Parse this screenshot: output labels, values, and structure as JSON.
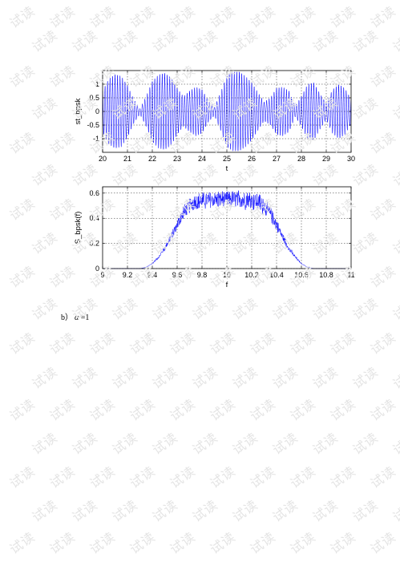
{
  "watermark_text": "试读",
  "caption": {
    "label": "b）",
    "alpha_symbol": "α",
    "equation": " =1"
  },
  "chart_data": [
    {
      "type": "line",
      "id": "time-domain",
      "title": "",
      "xlabel": "t",
      "ylabel": "st_bpsk",
      "xlim": [
        20,
        30
      ],
      "ylim": [
        -1.5,
        1.5
      ],
      "xticks": [
        20,
        21,
        22,
        23,
        24,
        25,
        26,
        27,
        28,
        29,
        30
      ],
      "yticks": [
        -1,
        -0.5,
        0,
        0.5,
        1
      ],
      "ytick_labels": [
        "-1",
        "-0.5",
        "0",
        "0.5",
        "1"
      ],
      "grid": true,
      "line_color": "#0000ff",
      "series": [
        {
          "carrier_frequency": 10,
          "envelope": {
            "t": [
              20.0,
              20.25,
              20.5,
              20.75,
              21.0,
              21.25,
              21.5,
              21.75,
              22.0,
              22.25,
              22.5,
              22.75,
              23.0,
              23.25,
              23.5,
              23.75,
              24.0,
              24.25,
              24.5,
              24.75,
              25.0,
              25.25,
              25.5,
              25.75,
              26.0,
              26.25,
              26.5,
              26.75,
              27.0,
              27.25,
              27.5,
              27.75,
              28.0,
              28.25,
              28.5,
              28.75,
              29.0,
              29.25,
              29.5,
              29.75,
              30.0
            ],
            "amplitude": [
              0.75,
              1.2,
              1.35,
              1.3,
              0.95,
              0.45,
              0.1,
              0.55,
              1.1,
              1.35,
              1.4,
              1.25,
              0.85,
              0.55,
              0.75,
              0.9,
              0.8,
              0.4,
              0.15,
              0.7,
              1.3,
              1.45,
              1.45,
              1.3,
              1.05,
              0.7,
              0.35,
              0.5,
              0.85,
              0.9,
              0.75,
              0.2,
              0.55,
              1.0,
              1.05,
              0.65,
              0.3,
              0.8,
              1.0,
              0.85,
              0.45
            ]
          }
        }
      ]
    },
    {
      "type": "line",
      "id": "spectrum",
      "title": "",
      "xlabel": "f",
      "ylabel": "S_bpsk(f)",
      "xlim": [
        9,
        11
      ],
      "ylim": [
        0,
        0.65
      ],
      "xticks": [
        9,
        9.2,
        9.4,
        9.6,
        9.8,
        10,
        10.2,
        10.4,
        10.6,
        10.8,
        11
      ],
      "xtick_labels": [
        "9",
        "9.2",
        "9.4",
        "9.6",
        "9.8",
        "10",
        "10.2",
        "10.4",
        "10.6",
        "10.8",
        "11"
      ],
      "yticks": [
        0,
        0.2,
        0.4,
        0.6
      ],
      "ytick_labels": [
        "0",
        "0.2",
        "0.4",
        "0.6"
      ],
      "grid": true,
      "line_color": "#0000ff",
      "series": [
        {
          "shape": {
            "f": [
              9.0,
              9.3,
              9.35,
              9.4,
              9.45,
              9.5,
              9.55,
              9.6,
              9.65,
              9.7,
              9.75,
              9.8,
              9.9,
              10.0,
              10.1,
              10.2,
              10.25,
              10.3,
              10.35,
              10.4,
              10.45,
              10.5,
              10.55,
              10.6,
              10.65,
              10.7,
              11.0
            ],
            "level": [
              0.0,
              0.0,
              0.01,
              0.04,
              0.09,
              0.16,
              0.25,
              0.35,
              0.44,
              0.5,
              0.53,
              0.54,
              0.55,
              0.55,
              0.55,
              0.54,
              0.53,
              0.5,
              0.44,
              0.35,
              0.25,
              0.16,
              0.09,
              0.04,
              0.01,
              0.0,
              0.0
            ],
            "max_value": 0.65
          }
        }
      ]
    }
  ]
}
